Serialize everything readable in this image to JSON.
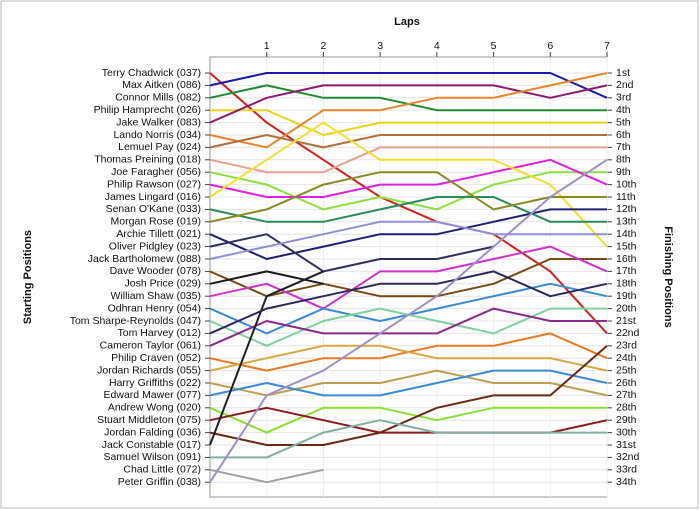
{
  "chart_data": {
    "type": "line",
    "x_label": "Laps",
    "y_label": "Starting Positions",
    "y2_label": "Finishing Positions",
    "x": [
      0,
      1,
      2,
      3,
      4,
      5,
      6,
      7
    ],
    "xlim": [
      0,
      7
    ],
    "xticks": [
      1,
      2,
      3,
      4,
      5,
      6,
      7
    ],
    "ylim": [
      35,
      0
    ],
    "yticks": [
      {
        "value": 1,
        "label": "1st"
      },
      {
        "value": 2,
        "label": "2nd"
      },
      {
        "value": 3,
        "label": "3rd"
      },
      {
        "value": 4,
        "label": "4th"
      },
      {
        "value": 5,
        "label": "5th"
      },
      {
        "value": 6,
        "label": "6th"
      },
      {
        "value": 7,
        "label": "7th"
      },
      {
        "value": 8,
        "label": "8th"
      },
      {
        "value": 9,
        "label": "9th"
      },
      {
        "value": 10,
        "label": "10th"
      },
      {
        "value": 11,
        "label": "11th"
      },
      {
        "value": 12,
        "label": "12th"
      },
      {
        "value": 13,
        "label": "13th"
      },
      {
        "value": 14,
        "label": "14th"
      },
      {
        "value": 15,
        "label": "15th"
      },
      {
        "value": 16,
        "label": "16th"
      },
      {
        "value": 17,
        "label": "17th"
      },
      {
        "value": 18,
        "label": "18th"
      },
      {
        "value": 19,
        "label": "19th"
      },
      {
        "value": 20,
        "label": "20th"
      },
      {
        "value": 21,
        "label": "21st"
      },
      {
        "value": 22,
        "label": "22nd"
      },
      {
        "value": 23,
        "label": "23rd"
      },
      {
        "value": 24,
        "label": "24th"
      },
      {
        "value": 25,
        "label": "25th"
      },
      {
        "value": 26,
        "label": "26th"
      },
      {
        "value": 27,
        "label": "27th"
      },
      {
        "value": 28,
        "label": "28th"
      },
      {
        "value": 29,
        "label": "29th"
      },
      {
        "value": 30,
        "label": "30th"
      },
      {
        "value": 31,
        "label": "31st"
      },
      {
        "value": 32,
        "label": "32nd"
      },
      {
        "value": 33,
        "label": "33rd"
      },
      {
        "value": 34,
        "label": "34th"
      }
    ],
    "grid": true,
    "series": [
      {
        "name": "Terry Chadwick (037)",
        "color": "#d42020",
        "values": [
          1,
          5,
          8,
          11,
          13,
          14,
          17,
          22
        ]
      },
      {
        "name": "Max Aitken (086)",
        "color": "#1a1aa8",
        "values": [
          2,
          1,
          1,
          1,
          1,
          1,
          1,
          3
        ]
      },
      {
        "name": "Connor Mills (082)",
        "color": "#1e8c2e",
        "values": [
          3,
          2,
          3,
          3,
          4,
          4,
          4,
          4
        ]
      },
      {
        "name": "Philip Hamprecht (026)",
        "color": "#e8d51a",
        "values": [
          4,
          4,
          6,
          5,
          5,
          5,
          5,
          5
        ]
      },
      {
        "name": "Jake Walker (083)",
        "color": "#8c1a6e",
        "values": [
          5,
          3,
          2,
          2,
          2,
          2,
          3,
          2
        ]
      },
      {
        "name": "Lando Norris (034)",
        "color": "#e8842a",
        "values": [
          6,
          7,
          4,
          4,
          3,
          3,
          2,
          1
        ]
      },
      {
        "name": "Lemuel Pay (024)",
        "color": "#b0703a",
        "values": [
          7,
          6,
          7,
          6,
          6,
          6,
          6,
          6
        ]
      },
      {
        "name": "Thomas Preining (018)",
        "color": "#e8a090",
        "values": [
          8,
          9,
          9,
          7,
          7,
          7,
          7,
          7
        ]
      },
      {
        "name": "Joe Faragher (056)",
        "color": "#8ee040",
        "values": [
          9,
          10,
          12,
          11,
          12,
          10,
          9,
          9
        ]
      },
      {
        "name": "Philip Rawson (027)",
        "color": "#e020e0",
        "values": [
          10,
          11,
          11,
          10,
          10,
          9,
          8,
          10
        ]
      },
      {
        "name": "James Lingard (016)",
        "color": "#f0e030",
        "values": [
          11,
          8,
          5,
          8,
          8,
          8,
          10,
          15
        ]
      },
      {
        "name": "Senan O'Kane (033)",
        "color": "#2a8a5a",
        "values": [
          12,
          13,
          13,
          12,
          11,
          11,
          13,
          13
        ]
      },
      {
        "name": "Morgan Rose (019)",
        "color": "#8a8a20",
        "values": [
          13,
          12,
          10,
          9,
          9,
          12,
          11,
          11
        ]
      },
      {
        "name": "Archie Tillett (021)",
        "color": "#202070",
        "values": [
          14,
          16,
          15,
          14,
          14,
          13,
          12,
          12
        ]
      },
      {
        "name": "Oliver Pidgley (023)",
        "color": "#303060",
        "values": [
          15,
          14,
          17,
          16,
          16,
          15,
          null,
          null
        ]
      },
      {
        "name": "Jack Bartholomew (088)",
        "color": "#9090d8",
        "values": [
          16,
          15,
          14,
          13,
          13,
          14,
          14,
          14
        ]
      },
      {
        "name": "Dave Wooder (078)",
        "color": "#7a4a10",
        "values": [
          17,
          19,
          18,
          19,
          19,
          18,
          16,
          16
        ]
      },
      {
        "name": "Josh Price (029)",
        "color": "#1a1a1a",
        "values": [
          18,
          17,
          18,
          null,
          null,
          null,
          null,
          null
        ]
      },
      {
        "name": "William Shaw (035)",
        "color": "#d030d0",
        "values": [
          19,
          18,
          20,
          17,
          17,
          16,
          15,
          17
        ]
      },
      {
        "name": "Odhran Henry (054)",
        "color": "#3a8ad8",
        "values": [
          20,
          22,
          20,
          21,
          20,
          19,
          18,
          19
        ]
      },
      {
        "name": "Tom Sharpe-Reynolds (047)",
        "color": "#80d0a0",
        "values": [
          21,
          23,
          21,
          20,
          21,
          22,
          20,
          20
        ]
      },
      {
        "name": "Tom Harvey (012)",
        "color": "#2a2a5a",
        "values": [
          22,
          20,
          19,
          18,
          18,
          17,
          19,
          18
        ]
      },
      {
        "name": "Cameron Taylor (061)",
        "color": "#8a2a8a",
        "values": [
          23,
          21,
          22,
          22,
          22,
          20,
          21,
          21
        ]
      },
      {
        "name": "Philip Craven (052)",
        "color": "#e87a20",
        "values": [
          24,
          25,
          24,
          24,
          23,
          23,
          22,
          24
        ]
      },
      {
        "name": "Jordan Richards (055)",
        "color": "#d8a840",
        "values": [
          25,
          24,
          23,
          23,
          24,
          24,
          24,
          25
        ]
      },
      {
        "name": "Harry Griffiths (022)",
        "color": "#c0a050",
        "values": [
          26,
          27,
          26,
          26,
          25,
          26,
          26,
          27
        ]
      },
      {
        "name": "Edward Mawer (077)",
        "color": "#3a8ad8",
        "values": [
          27,
          26,
          27,
          27,
          26,
          25,
          25,
          26
        ]
      },
      {
        "name": "Andrew Wong (020)",
        "color": "#8ae030",
        "values": [
          28,
          30,
          28,
          28,
          29,
          28,
          28,
          28
        ]
      },
      {
        "name": "Stuart Middleton (075)",
        "color": "#8a1a1a",
        "values": [
          29,
          28,
          29,
          30,
          30,
          30,
          30,
          29
        ]
      },
      {
        "name": "Jordan Falding (036)",
        "color": "#6a2a10",
        "values": [
          30,
          31,
          31,
          30,
          28,
          27,
          27,
          23
        ]
      },
      {
        "name": "Jack Constable (017)",
        "color": "#202020",
        "values": [
          31,
          19,
          17,
          null,
          null,
          null,
          null,
          null
        ]
      },
      {
        "name": "Samuel Wilson (091)",
        "color": "#80b0a0",
        "values": [
          32,
          32,
          30,
          29,
          30,
          30,
          30,
          30
        ]
      },
      {
        "name": "Chad Little (072)",
        "color": "#a0a0a0",
        "values": [
          33,
          34,
          33,
          null,
          null,
          null,
          null,
          null
        ]
      },
      {
        "name": "Peter Griffin (038)",
        "color": "#a090c8",
        "values": [
          34,
          27,
          25,
          22,
          19,
          15,
          11,
          8
        ]
      }
    ]
  }
}
